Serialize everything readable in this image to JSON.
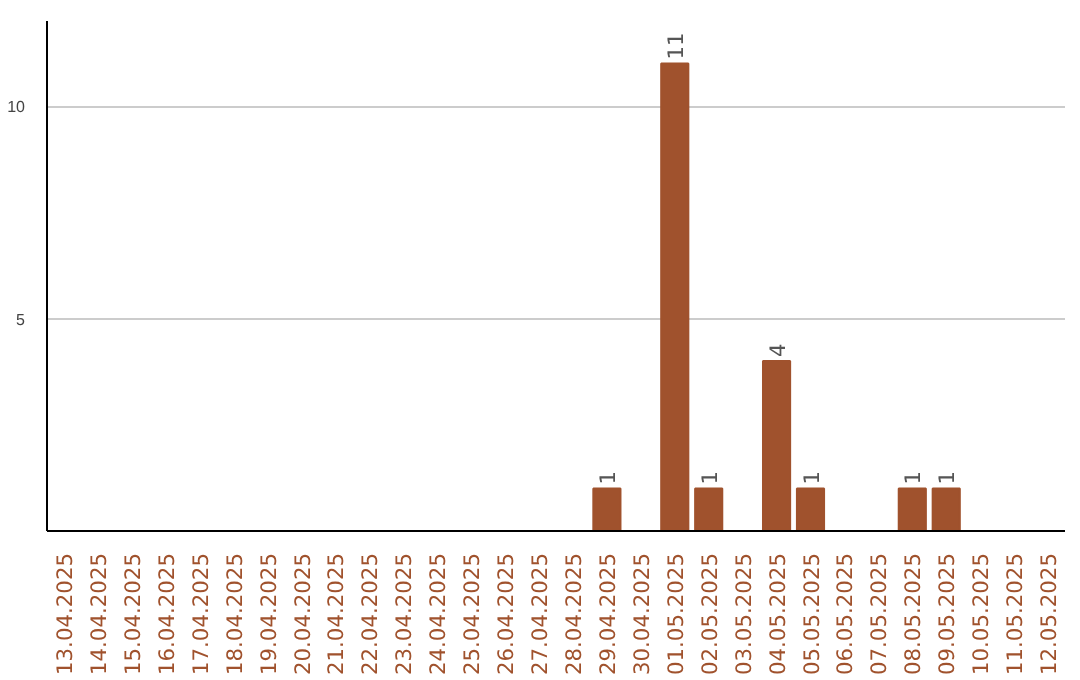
{
  "chart_data": {
    "type": "bar",
    "categories": [
      "13.04.2025",
      "14.04.2025",
      "15.04.2025",
      "16.04.2025",
      "17.04.2025",
      "18.04.2025",
      "19.04.2025",
      "20.04.2025",
      "21.04.2025",
      "22.04.2025",
      "23.04.2025",
      "24.04.2025",
      "25.04.2025",
      "26.04.2025",
      "27.04.2025",
      "28.04.2025",
      "29.04.2025",
      "30.04.2025",
      "01.05.2025",
      "02.05.2025",
      "03.05.2025",
      "04.05.2025",
      "05.05.2025",
      "06.05.2025",
      "07.05.2025",
      "08.05.2025",
      "09.05.2025",
      "10.05.2025",
      "11.05.2025",
      "12.05.2025"
    ],
    "values": [
      0,
      0,
      0,
      0,
      0,
      0,
      0,
      0,
      0,
      0,
      0,
      0,
      0,
      0,
      0,
      0,
      1,
      0,
      11,
      1,
      0,
      4,
      1,
      0,
      0,
      1,
      1,
      0,
      0,
      0
    ],
    "value_labels": [
      null,
      null,
      null,
      null,
      null,
      null,
      null,
      null,
      null,
      null,
      null,
      null,
      null,
      null,
      null,
      null,
      "1",
      null,
      "11",
      "1",
      null,
      "4",
      "1",
      null,
      null,
      "1",
      "1",
      null,
      null,
      null
    ],
    "color": "#a0522d",
    "ylim": [
      0,
      12
    ],
    "yticks": [
      5,
      10
    ],
    "grid": "y"
  }
}
